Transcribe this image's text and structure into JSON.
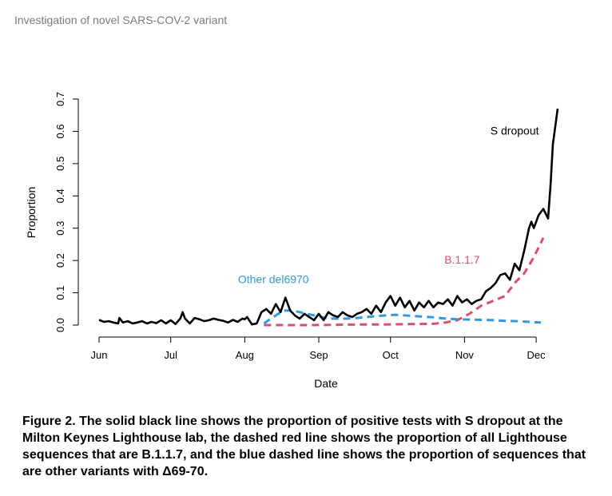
{
  "header": {
    "title": "Investigation of novel SARS-COV-2 variant"
  },
  "chart_data": {
    "type": "line",
    "title": "",
    "xlabel": "Date",
    "ylabel": "Proportion",
    "ylim": [
      0,
      0.7
    ],
    "yticks": [
      "0.0",
      "0.1",
      "0.2",
      "0.3",
      "0.4",
      "0.5",
      "0.6",
      "0.7"
    ],
    "xlim_days": [
      -2,
      193
    ],
    "xticks": [
      {
        "label": "Jun",
        "day": 0
      },
      {
        "label": "Jul",
        "day": 30
      },
      {
        "label": "Aug",
        "day": 61
      },
      {
        "label": "Sep",
        "day": 92
      },
      {
        "label": "Oct",
        "day": 122
      },
      {
        "label": "Nov",
        "day": 153
      },
      {
        "label": "Dec",
        "day": 183
      }
    ],
    "series": [
      {
        "name": "S dropout",
        "color": "#000000",
        "style": "solid",
        "label_day": 174,
        "label_value": 0.59,
        "days": [
          0,
          2,
          4,
          6,
          8,
          8.5,
          10,
          12,
          14,
          16,
          18,
          20,
          22,
          24,
          26,
          28,
          30,
          32,
          34,
          35,
          36,
          38,
          40,
          42,
          44,
          46,
          48,
          50,
          52,
          54,
          56,
          58,
          60,
          61,
          62,
          64,
          66,
          68,
          70,
          72,
          74,
          76,
          78,
          80,
          82,
          84,
          86,
          88,
          90,
          92,
          94,
          96,
          98,
          100,
          102,
          104,
          106,
          108,
          110,
          112,
          114,
          116,
          118,
          120,
          122,
          124,
          126,
          128,
          130,
          132,
          134,
          136,
          138,
          140,
          142,
          144,
          146,
          148,
          150,
          152,
          154,
          156,
          158,
          160,
          162,
          164,
          166,
          168,
          170,
          172,
          174,
          176,
          178,
          180,
          181,
          182,
          184,
          186,
          188,
          189,
          190,
          192
        ],
        "values": [
          0.016,
          0.01,
          0.012,
          0.008,
          0.005,
          0.022,
          0.008,
          0.012,
          0.005,
          0.008,
          0.012,
          0.005,
          0.01,
          0.006,
          0.015,
          0.005,
          0.015,
          0.003,
          0.02,
          0.04,
          0.02,
          0.005,
          0.022,
          0.018,
          0.012,
          0.015,
          0.02,
          0.016,
          0.013,
          0.008,
          0.016,
          0.01,
          0.02,
          0.018,
          0.025,
          0.002,
          0.005,
          0.04,
          0.05,
          0.035,
          0.065,
          0.04,
          0.085,
          0.045,
          0.03,
          0.02,
          0.035,
          0.025,
          0.015,
          0.035,
          0.015,
          0.04,
          0.03,
          0.025,
          0.04,
          0.03,
          0.025,
          0.035,
          0.04,
          0.05,
          0.035,
          0.06,
          0.04,
          0.07,
          0.09,
          0.06,
          0.085,
          0.055,
          0.075,
          0.045,
          0.07,
          0.055,
          0.075,
          0.055,
          0.07,
          0.065,
          0.08,
          0.06,
          0.09,
          0.07,
          0.08,
          0.065,
          0.075,
          0.08,
          0.105,
          0.115,
          0.13,
          0.155,
          0.16,
          0.14,
          0.19,
          0.17,
          0.23,
          0.3,
          0.32,
          0.3,
          0.34,
          0.36,
          0.33,
          0.43,
          0.56,
          0.67
        ]
      },
      {
        "name": "B.1.1.7",
        "color": "#d9506a",
        "style": "dashed",
        "label_day": 152,
        "label_value": 0.19,
        "days": [
          69,
          80,
          90,
          100,
          110,
          120,
          130,
          140,
          145,
          150,
          155,
          160,
          165,
          170,
          174,
          178,
          182,
          186
        ],
        "values": [
          0.0,
          0.0,
          0.0,
          0.001,
          0.002,
          0.002,
          0.003,
          0.004,
          0.008,
          0.015,
          0.035,
          0.06,
          0.075,
          0.09,
          0.13,
          0.16,
          0.21,
          0.27
        ]
      },
      {
        "name": "Other del6970",
        "color": "#3399dd",
        "style": "dashed",
        "label_day": 73,
        "label_value": 0.13,
        "days": [
          69,
          72,
          75,
          78,
          81,
          84,
          87,
          90,
          93,
          96,
          100,
          104,
          108,
          112,
          116,
          120,
          124,
          128,
          132,
          136,
          140,
          145,
          150,
          155,
          160,
          165,
          170,
          175,
          180,
          185
        ],
        "values": [
          0.005,
          0.02,
          0.035,
          0.045,
          0.045,
          0.04,
          0.035,
          0.03,
          0.025,
          0.02,
          0.02,
          0.02,
          0.022,
          0.025,
          0.028,
          0.03,
          0.032,
          0.03,
          0.028,
          0.026,
          0.024,
          0.02,
          0.018,
          0.017,
          0.016,
          0.015,
          0.013,
          0.012,
          0.01,
          0.008
        ]
      }
    ]
  },
  "caption": {
    "text": "Figure 2. The solid black line shows the proportion of positive tests with S dropout at the Milton Keynes Lighthouse lab, the dashed red line shows the proportion of all Lighthouse sequences that are B.1.1.7, and the blue dashed line shows the proportion of sequences that are other variants with Δ69-70."
  }
}
